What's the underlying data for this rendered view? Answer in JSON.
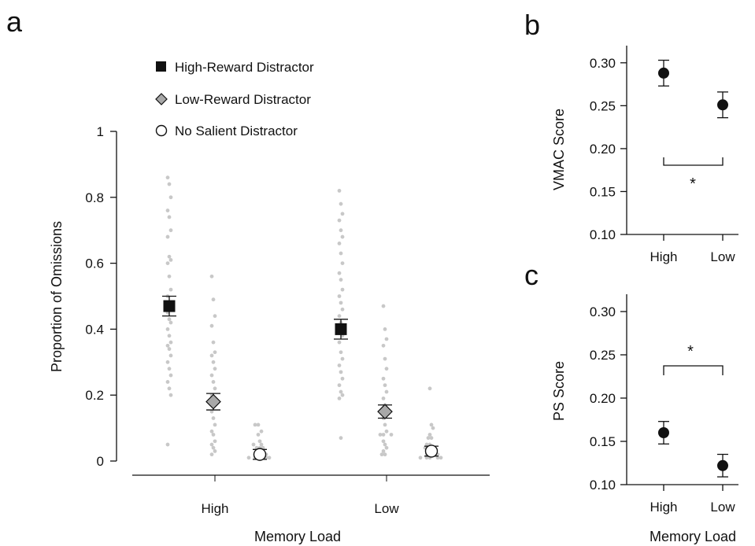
{
  "colors": {
    "high": "#111111",
    "low": "#a8a8a8",
    "none": "#ffffff",
    "dots": "#c8c8c8",
    "axis": "#111111"
  },
  "chart_data": [
    {
      "panel": "a",
      "type": "scatter",
      "xlabel": "Memory Load",
      "ylabel": "Proportion of Omissions",
      "categories": [
        "High",
        "Low"
      ],
      "ylim": [
        0,
        1
      ],
      "yticks": [
        "0",
        "0.2",
        "0.4",
        "0.6",
        "0.8",
        "1"
      ],
      "legend_position": "top",
      "series": [
        {
          "name": "High-Reward Distractor",
          "marker": "square",
          "means": [
            0.47,
            0.4
          ],
          "errors": [
            0.03,
            0.03
          ],
          "points": [
            [
              0.86,
              0.84,
              0.8,
              0.76,
              0.74,
              0.7,
              0.68,
              0.62,
              0.61,
              0.6,
              0.56,
              0.52,
              0.5,
              0.48,
              0.46,
              0.45,
              0.43,
              0.42,
              0.4,
              0.38,
              0.36,
              0.35,
              0.34,
              0.32,
              0.3,
              0.28,
              0.26,
              0.24,
              0.22,
              0.2,
              0.05
            ],
            [
              0.82,
              0.78,
              0.75,
              0.73,
              0.7,
              0.68,
              0.66,
              0.63,
              0.6,
              0.57,
              0.55,
              0.52,
              0.5,
              0.48,
              0.46,
              0.44,
              0.42,
              0.38,
              0.36,
              0.33,
              0.31,
              0.29,
              0.27,
              0.25,
              0.23,
              0.21,
              0.2,
              0.19,
              0.07
            ]
          ]
        },
        {
          "name": "Low-Reward Distractor",
          "marker": "diamond",
          "means": [
            0.18,
            0.15
          ],
          "errors": [
            0.025,
            0.02
          ],
          "points": [
            [
              0.56,
              0.49,
              0.44,
              0.41,
              0.36,
              0.33,
              0.32,
              0.3,
              0.28,
              0.26,
              0.24,
              0.22,
              0.2,
              0.18,
              0.17,
              0.15,
              0.13,
              0.11,
              0.09,
              0.08,
              0.06,
              0.05,
              0.04,
              0.03,
              0.02
            ],
            [
              0.47,
              0.4,
              0.37,
              0.35,
              0.31,
              0.28,
              0.25,
              0.23,
              0.21,
              0.19,
              0.17,
              0.15,
              0.13,
              0.11,
              0.09,
              0.08,
              0.08,
              0.08,
              0.06,
              0.05,
              0.04,
              0.03,
              0.02,
              0.02
            ]
          ]
        },
        {
          "name": "No Salient Distractor",
          "marker": "circle",
          "means": [
            0.02,
            0.03
          ],
          "errors": [
            0.015,
            0.015
          ],
          "points": [
            [
              0.11,
              0.11,
              0.09,
              0.08,
              0.06,
              0.05,
              0.05,
              0.04,
              0.04,
              0.04,
              0.03,
              0.03,
              0.02,
              0.02,
              0.02,
              0.01,
              0.01,
              0.01,
              0.01,
              0.01
            ],
            [
              0.22,
              0.11,
              0.1,
              0.08,
              0.07,
              0.07,
              0.05,
              0.05,
              0.04,
              0.04,
              0.03,
              0.03,
              0.02,
              0.02,
              0.02,
              0.01,
              0.01,
              0.01,
              0.01,
              0.01
            ]
          ]
        }
      ]
    },
    {
      "panel": "b",
      "type": "scatter",
      "ylabel": "VMAC Score",
      "categories": [
        "High",
        "Low"
      ],
      "ylim": [
        0.1,
        0.32
      ],
      "yticks": [
        "0.10",
        "0.15",
        "0.20",
        "0.25",
        "0.30"
      ],
      "values": [
        0.288,
        0.251
      ],
      "errors": [
        0.015,
        0.015
      ],
      "significance": "*"
    },
    {
      "panel": "c",
      "type": "scatter",
      "xlabel": "Memory Load",
      "ylabel": "PS Score",
      "categories": [
        "High",
        "Low"
      ],
      "ylim": [
        0.1,
        0.32
      ],
      "yticks": [
        "0.10",
        "0.15",
        "0.20",
        "0.25",
        "0.30"
      ],
      "values": [
        0.16,
        0.122
      ],
      "errors": [
        0.013,
        0.013
      ],
      "significance": "*"
    }
  ]
}
